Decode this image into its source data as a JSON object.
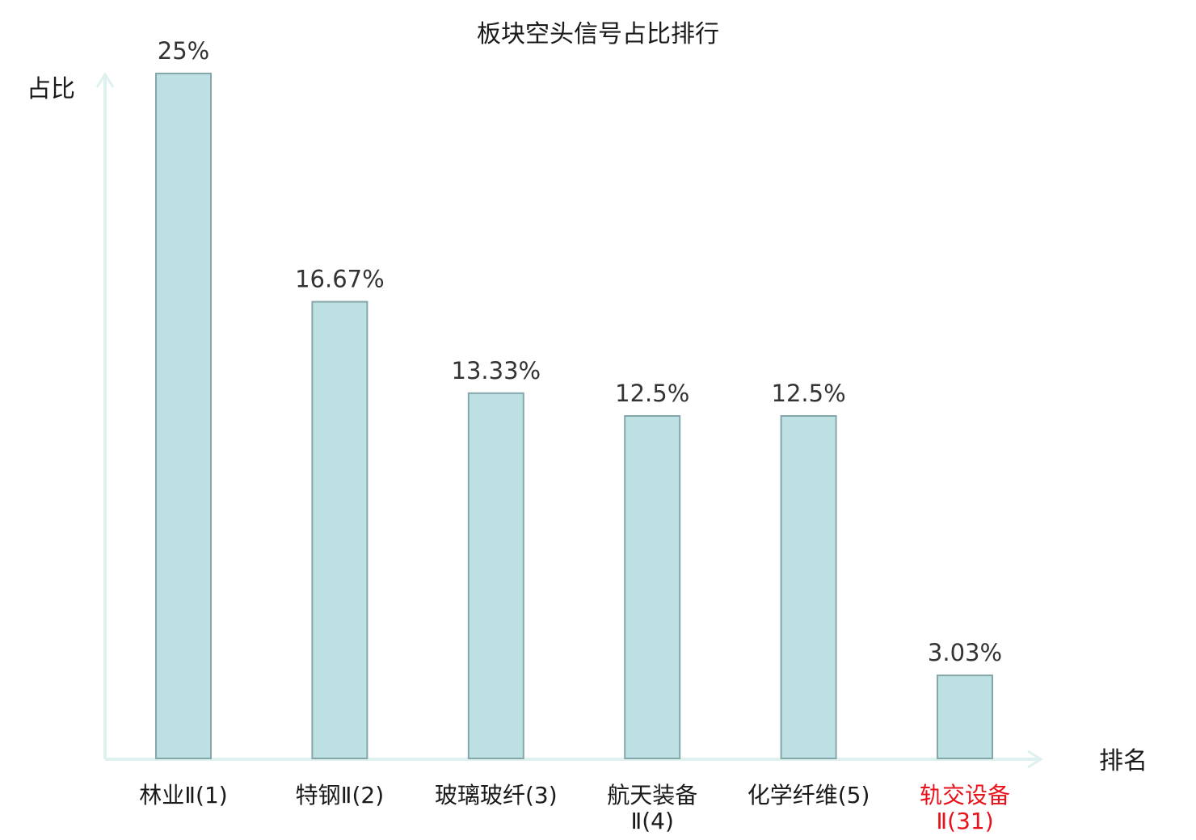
{
  "chart_data": {
    "type": "bar",
    "title": "板块空头信号占比排行",
    "ylabel": "占比",
    "xlabel": "排名",
    "ylim": [
      0,
      25
    ],
    "grid": false,
    "legend": "none",
    "categories": [
      [
        "林业Ⅱ(1)"
      ],
      [
        "特钢Ⅱ(2)"
      ],
      [
        "玻璃玻纤(3)"
      ],
      [
        "航天装备",
        "Ⅱ(4)"
      ],
      [
        "化学纤维(5)"
      ],
      [
        "轨交设备",
        "Ⅱ(31)"
      ]
    ],
    "values": [
      25,
      16.67,
      13.33,
      12.5,
      12.5,
      3.03
    ],
    "value_labels": [
      "25%",
      "16.67%",
      "13.33%",
      "12.5%",
      "12.5%",
      "3.03%"
    ],
    "highlight_index": 5,
    "colors": {
      "bar_fill": "#bde1e3",
      "bar_stroke": "#86a7aa",
      "axis": "#dff1ef",
      "highlight_text": "#e8121b"
    }
  }
}
